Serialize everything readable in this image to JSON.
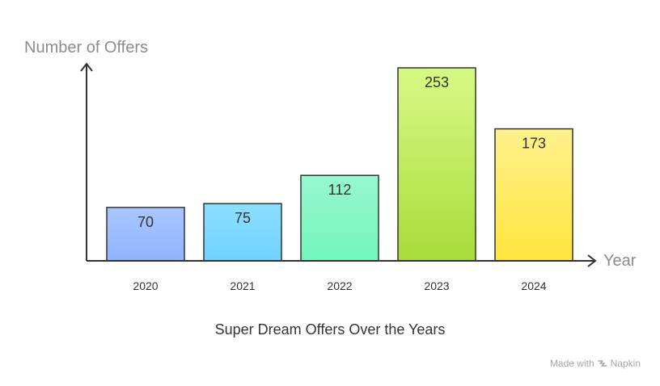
{
  "chart_data": {
    "type": "bar",
    "title": "Super Dream Offers Over the Years",
    "xlabel": "Year",
    "ylabel": "Number of Offers",
    "categories": [
      "2020",
      "2021",
      "2022",
      "2023",
      "2024"
    ],
    "values": [
      70,
      75,
      112,
      253,
      173
    ],
    "ylim": [
      0,
      253
    ],
    "grid": false,
    "bar_colors": [
      [
        "#a9c6ff",
        "#8fb4ff"
      ],
      [
        "#8ddfff",
        "#6fd2ff"
      ],
      [
        "#99f7cf",
        "#72f5bd"
      ],
      [
        "#d8f985",
        "#a6dc3a"
      ],
      [
        "#fff08c",
        "#ffe53d"
      ]
    ]
  },
  "watermark": {
    "prefix": "Made with",
    "brand": "Napkin"
  }
}
